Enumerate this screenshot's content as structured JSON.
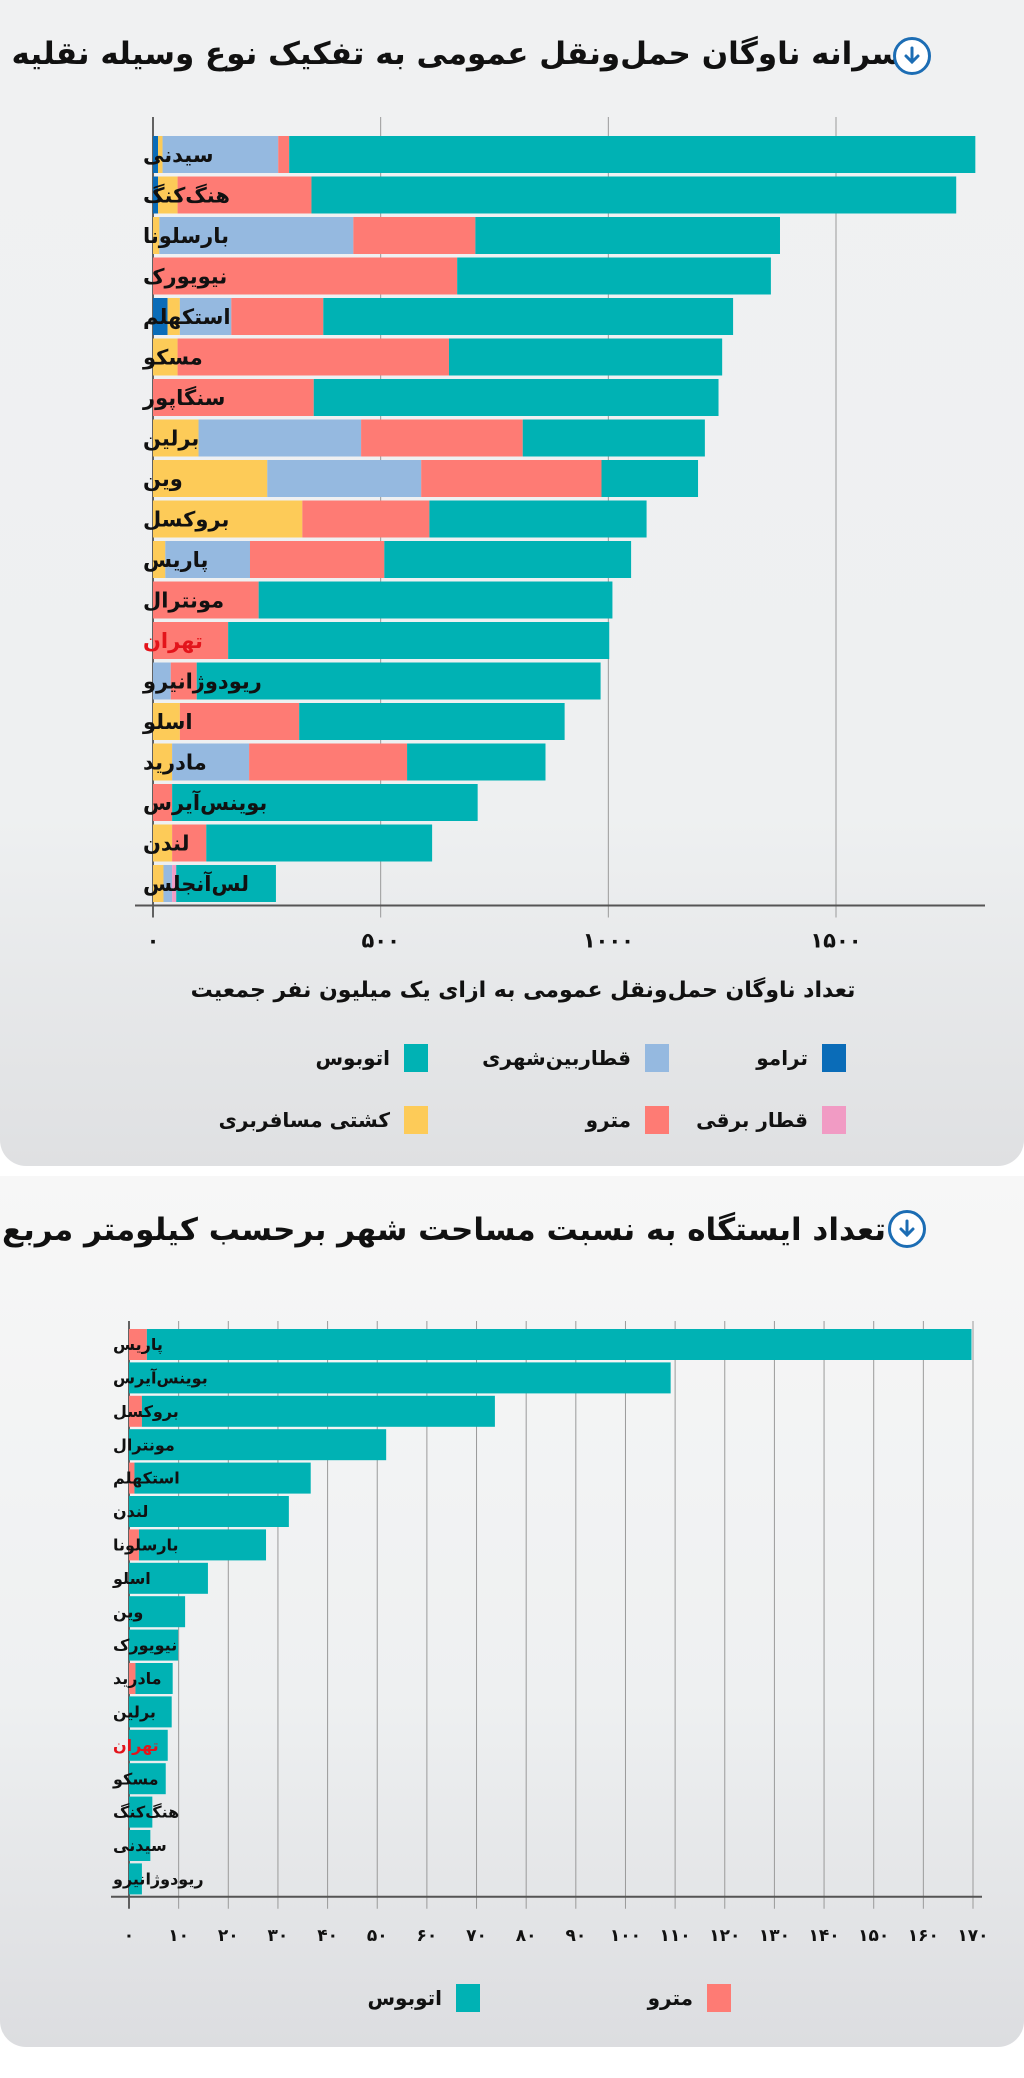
{
  "colors": {
    "tram": "#0a6cb8",
    "commuter_rail": "#95b9e0",
    "bus": "#00b2b4",
    "light_rail": "#f19bc4",
    "metro": "#fe7b74",
    "ferry": "#fdcb58",
    "highlight_label": "#e3141b",
    "icon": "#1c6db4"
  },
  "icons": {
    "title_icon": "arrow-down-circle-icon"
  },
  "chart_data": [
    {
      "type": "bar",
      "orientation": "horizontal",
      "stacked": true,
      "title": "سرانه ناوگان حمل‌ونقل عمومی به تفکیک نوع وسیله نقلیه",
      "xlabel": "تعداد ناوگان حمل‌ونقل عمومی به ازای یک میلیون نفر جمعیت",
      "ylabel": "",
      "xlim": [
        0,
        1850
      ],
      "xticks": [
        0,
        500,
        1000,
        1500
      ],
      "xtick_labels": [
        "۰",
        "۵۰۰",
        "۱۰۰۰",
        "۱۵۰۰"
      ],
      "grid": true,
      "legend_position": "bottom",
      "highlight_category": "تهران",
      "categories": [
        "سیدنی",
        "هنگ‌کنگ",
        "بارسلونا",
        "نیویورک",
        "استکهلم",
        "مسکو",
        "سنگاپور",
        "برلین",
        "وین",
        "بروکسل",
        "پاریس",
        "مونترال",
        "تهران",
        "ریودوژانیرو",
        "اسلو",
        "مادرید",
        "بوینس‌آیرس",
        "لندن",
        "لس‌آنجلس"
      ],
      "series": [
        {
          "key": "tram",
          "name": "ترامو",
          "values": [
            11,
            11,
            0,
            0,
            32,
            0,
            0,
            0,
            0,
            0,
            0,
            0,
            0,
            0,
            0,
            0,
            0,
            0,
            0
          ]
        },
        {
          "key": "ferry",
          "name": "کشتی مسافربری",
          "values": [
            10,
            43,
            14,
            0,
            27,
            54,
            0,
            100,
            251,
            328,
            27,
            0,
            0,
            0,
            59,
            42,
            0,
            42,
            23
          ]
        },
        {
          "key": "commuter_rail",
          "name": "قطاربین‌شهری",
          "values": [
            254,
            0,
            426,
            0,
            113,
            0,
            0,
            357,
            338,
            0,
            186,
            0,
            0,
            39,
            0,
            169,
            0,
            0,
            19
          ]
        },
        {
          "key": "metro",
          "name": "مترو",
          "values": [
            24,
            294,
            268,
            668,
            202,
            596,
            353,
            355,
            396,
            279,
            295,
            232,
            165,
            57,
            262,
            347,
            42,
            75,
            0
          ]
        },
        {
          "key": "light_rail",
          "name": "قطار برقی",
          "values": [
            0,
            0,
            0,
            0,
            0,
            0,
            0,
            0,
            0,
            0,
            0,
            0,
            0,
            0,
            0,
            0,
            0,
            0,
            9
          ]
        },
        {
          "key": "bus",
          "name": "اتوبوس",
          "values": [
            1507,
            1416,
            669,
            689,
            900,
            600,
            889,
            400,
            212,
            477,
            542,
            777,
            837,
            887,
            583,
            304,
            671,
            496,
            219
          ]
        }
      ],
      "legend": [
        {
          "key": "tram",
          "label": "ترامو"
        },
        {
          "key": "commuter_rail",
          "label": "قطاربین‌شهری"
        },
        {
          "key": "bus",
          "label": "اتوبوس"
        },
        {
          "key": "light_rail",
          "label": "قطار برقی"
        },
        {
          "key": "metro",
          "label": "مترو"
        },
        {
          "key": "ferry",
          "label": "کشتی مسافربری"
        }
      ]
    },
    {
      "type": "bar",
      "orientation": "horizontal",
      "stacked": true,
      "title": "تعداد ایستگاه به نسبت مساحت شهر برحسب کیلومتر مربع",
      "xlabel": "",
      "ylabel": "",
      "xlim": [
        0,
        170
      ],
      "xticks": [
        0,
        10,
        20,
        30,
        40,
        50,
        60,
        70,
        80,
        90,
        100,
        110,
        120,
        130,
        140,
        150,
        160,
        170
      ],
      "xtick_labels": [
        "۰",
        "۱۰",
        "۲۰",
        "۳۰",
        "۴۰",
        "۵۰",
        "۶۰",
        "۷۰",
        "۸۰",
        "۹۰",
        "۱۰۰",
        "۱۱۰",
        "۱۲۰",
        "۱۳۰",
        "۱۴۰",
        "۱۵۰",
        "۱۶۰",
        "۱۷۰"
      ],
      "grid": true,
      "legend_position": "bottom",
      "highlight_category": "تهران",
      "categories": [
        "پاریس",
        "بوینس‌آیرس",
        "بروکسل",
        "مونترال",
        "استکهلم",
        "لندن",
        "بارسلونا",
        "اسلو",
        "وین",
        "نیویورک",
        "مادرید",
        "برلین",
        "تهران",
        "مسکو",
        "هنگ‌کنگ",
        "سیدنی",
        "ریودوژانیرو"
      ],
      "series": [
        {
          "key": "metro",
          "name": "مترو",
          "values": [
            3.6,
            0,
            2.6,
            0,
            1.1,
            0,
            2.0,
            0,
            0,
            0,
            1.3,
            0,
            0,
            0,
            0,
            0,
            0
          ]
        },
        {
          "key": "bus",
          "name": "اتوبوس",
          "values": [
            166.1,
            109.1,
            71.1,
            51.8,
            35.5,
            32.2,
            25.6,
            15.9,
            11.3,
            9.9,
            7.5,
            8.6,
            7.8,
            7.4,
            4.7,
            4.3,
            2.6
          ]
        }
      ],
      "legend": [
        {
          "key": "bus",
          "label": "اتوبوس"
        },
        {
          "key": "metro",
          "label": "مترو"
        }
      ]
    }
  ]
}
